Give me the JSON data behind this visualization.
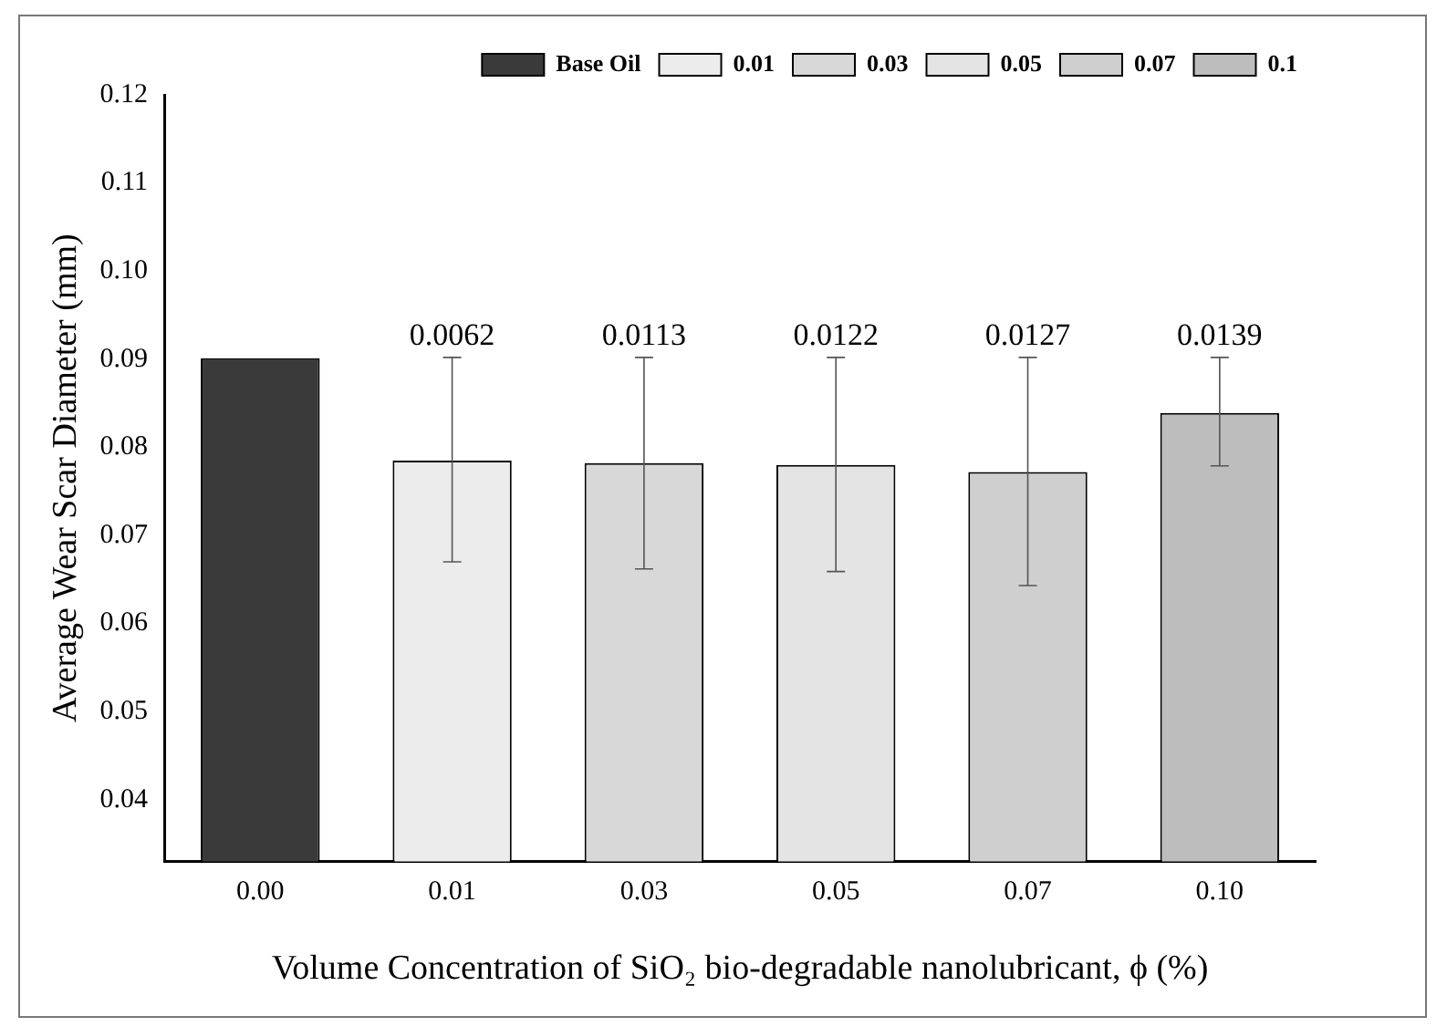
{
  "chart_data": {
    "type": "bar",
    "xlabel": "Volume Concentration of SiO₂ bio-degradable nanolubricant, ϕ (%)",
    "ylabel": "Average Wear Scar Diameter (mm)",
    "categories": [
      "0.00",
      "0.01",
      "0.03",
      "0.05",
      "0.07",
      "0.10"
    ],
    "series": [
      {
        "name": "Base Oil",
        "color": "#3a3a3a",
        "values": [
          0.0901,
          null,
          null,
          null,
          null,
          null
        ]
      },
      {
        "name": "0.01",
        "color": "#ececec",
        "values": [
          null,
          0.0785,
          null,
          null,
          null,
          null
        ],
        "errors": [
          null,
          [
            0.067,
            0.0902
          ],
          null,
          null,
          null,
          null
        ]
      },
      {
        "name": "0.03",
        "color": "#d8d8d8",
        "values": [
          null,
          null,
          0.0782,
          null,
          null,
          null
        ],
        "errors": [
          null,
          null,
          [
            0.0662,
            0.0902
          ],
          null,
          null,
          null
        ]
      },
      {
        "name": "0.05",
        "color": "#e4e4e4",
        "values": [
          null,
          null,
          null,
          0.078,
          null,
          null
        ],
        "errors": [
          null,
          null,
          null,
          [
            0.0659,
            0.0902
          ],
          null,
          null
        ]
      },
      {
        "name": "0.07",
        "color": "#cfcfcf",
        "values": [
          null,
          null,
          null,
          null,
          0.0772,
          null
        ],
        "errors": [
          null,
          null,
          null,
          null,
          [
            0.0643,
            0.0902
          ],
          null
        ]
      },
      {
        "name": "0.1",
        "color": "#bdbdbd",
        "values": [
          null,
          null,
          null,
          null,
          null,
          0.0839
        ],
        "errors": [
          null,
          null,
          null,
          null,
          null,
          [
            0.0779,
            0.0902
          ]
        ]
      }
    ],
    "annotations": [
      {
        "text": "0.0062",
        "x": "0.01",
        "y": 0.0902
      },
      {
        "text": "0.0113",
        "x": "0.03",
        "y": 0.0902
      },
      {
        "text": "0.0122",
        "x": "0.05",
        "y": 0.0902
      },
      {
        "text": "0.0127",
        "x": "0.07",
        "y": 0.0902
      },
      {
        "text": "0.0139",
        "x": "0.10",
        "y": 0.0902
      }
    ],
    "ylim": [
      0.033,
      0.12
    ],
    "yticks": [
      0.04,
      0.05,
      0.06,
      0.07,
      0.08,
      0.09,
      {
        "value": 0.1,
        "label": "0.10"
      },
      0.11,
      0.12
    ],
    "grid": false,
    "legend": "top right"
  }
}
